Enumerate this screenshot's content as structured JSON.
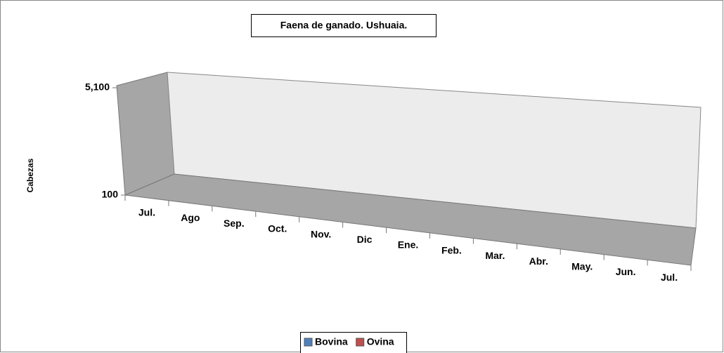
{
  "chart_data": {
    "type": "bar",
    "title": "Faena de ganado. Ushuaia.",
    "ylabel": "Cabezas",
    "categories": [
      "Jul.",
      "Ago",
      "Sep.",
      "Oct.",
      "Nov.",
      "Dic",
      "Ene.",
      "Feb.",
      "Mar.",
      "Abr.",
      "May.",
      "Jun.",
      "Jul."
    ],
    "series": [
      {
        "name": "Bovina",
        "color": "#4f81bd",
        "values": [
          null,
          null,
          null,
          null,
          null,
          null,
          null,
          null,
          null,
          null,
          null,
          null,
          null
        ]
      },
      {
        "name": "Ovina",
        "color": "#c0504d",
        "values": [
          null,
          null,
          null,
          null,
          null,
          null,
          null,
          null,
          null,
          null,
          null,
          null,
          null
        ]
      }
    ],
    "ylim": [
      100,
      5100
    ],
    "yticks": [
      100,
      {
        "value": 5100,
        "label": "5,100"
      }
    ]
  }
}
